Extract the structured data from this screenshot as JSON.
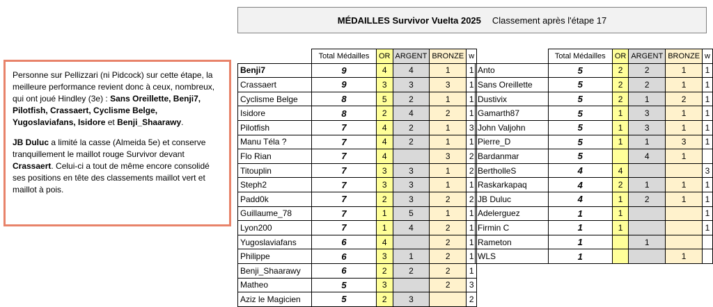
{
  "title": {
    "main": "MÉDAILLES Survivor Vuelta 2025",
    "sub": "Classement après l'étape 17"
  },
  "comment": {
    "p1_a": "Personne sur Pellizzari (ni Pidcock) sur cette étape, la meilleure performance revient donc à ceux, nombreux, qui ont joué Hindley (3e) : ",
    "p1_bold": "Sans Oreillette, Benji7, Pilotfish, Crassaert, Cyclisme Belge, Yugoslaviafans, Isidore",
    "p1_and": " et ",
    "p1_bold2": "Benji_Shaarawy",
    "p1_end": ".",
    "p2_bold": "JB Duluc",
    "p2_a": " a limité la casse (Almeida 5e) et conserve tranquillement le maillot rouge Survivor devant ",
    "p2_bold2": "Crassaert",
    "p2_b": ". Celui-ci a tout de même encore consolidé ses positions en tête des classements maillot vert et maillot à pois."
  },
  "headers": {
    "total": "Total Médailles",
    "or": "OR",
    "argent": "ARGENT",
    "bronze": "BRONZE",
    "w": "w"
  },
  "left_rows": [
    {
      "name": "Benji7",
      "total": "9",
      "or": "4",
      "argent": "4",
      "bronze": "1",
      "w": "1",
      "bold": true
    },
    {
      "name": "Crassaert",
      "total": "9",
      "or": "3",
      "argent": "3",
      "bronze": "3",
      "w": "1"
    },
    {
      "name": "Cyclisme Belge",
      "total": "8",
      "or": "5",
      "argent": "2",
      "bronze": "1",
      "w": "1"
    },
    {
      "name": "Isidore",
      "total": "8",
      "or": "2",
      "argent": "4",
      "bronze": "2",
      "w": "1"
    },
    {
      "name": "Pilotfish",
      "total": "7",
      "or": "4",
      "argent": "2",
      "bronze": "1",
      "w": "3"
    },
    {
      "name": "Manu Téla ?",
      "total": "7",
      "or": "4",
      "argent": "2",
      "bronze": "1",
      "w": "1"
    },
    {
      "name": "Flo Rian",
      "total": "7",
      "or": "4",
      "argent": "",
      "bronze": "3",
      "w": "2"
    },
    {
      "name": "Titouplin",
      "total": "7",
      "or": "3",
      "argent": "3",
      "bronze": "1",
      "w": "2"
    },
    {
      "name": "Steph2",
      "total": "7",
      "or": "3",
      "argent": "3",
      "bronze": "1",
      "w": "1"
    },
    {
      "name": "Padd0k",
      "total": "7",
      "or": "2",
      "argent": "3",
      "bronze": "2",
      "w": "2"
    },
    {
      "name": "Guillaume_78",
      "total": "7",
      "or": "1",
      "argent": "5",
      "bronze": "1",
      "w": "1"
    },
    {
      "name": "Lyon200",
      "total": "7",
      "or": "1",
      "argent": "4",
      "bronze": "2",
      "w": "1"
    },
    {
      "name": "Yugoslaviafans",
      "total": "6",
      "or": "4",
      "argent": "",
      "bronze": "2",
      "w": "1"
    },
    {
      "name": "Philippe",
      "total": "6",
      "or": "3",
      "argent": "1",
      "bronze": "2",
      "w": "1"
    },
    {
      "name": "Benji_Shaarawy",
      "total": "6",
      "or": "2",
      "argent": "2",
      "bronze": "2",
      "w": "1"
    },
    {
      "name": "Matheo",
      "total": "5",
      "or": "3",
      "argent": "",
      "bronze": "2",
      "w": "3"
    },
    {
      "name": "Aziz le Magicien",
      "total": "5",
      "or": "2",
      "argent": "3",
      "bronze": "",
      "w": "2"
    }
  ],
  "right_rows": [
    {
      "name": "Anto",
      "total": "5",
      "or": "2",
      "argent": "2",
      "bronze": "1",
      "w": "1"
    },
    {
      "name": "Sans Oreillette",
      "total": "5",
      "or": "2",
      "argent": "2",
      "bronze": "1",
      "w": "1"
    },
    {
      "name": "Dustivix",
      "total": "5",
      "or": "2",
      "argent": "1",
      "bronze": "2",
      "w": "1"
    },
    {
      "name": "Gamarth87",
      "total": "5",
      "or": "1",
      "argent": "3",
      "bronze": "1",
      "w": "1"
    },
    {
      "name": "John Valjohn",
      "total": "5",
      "or": "1",
      "argent": "3",
      "bronze": "1",
      "w": "1"
    },
    {
      "name": "Pierre_D",
      "total": "5",
      "or": "1",
      "argent": "1",
      "bronze": "3",
      "w": "1"
    },
    {
      "name": "Bardanmar",
      "total": "5",
      "or": "",
      "argent": "4",
      "bronze": "1",
      "w": ""
    },
    {
      "name": "BertholleS",
      "total": "4",
      "or": "4",
      "argent": "",
      "bronze": "",
      "w": "3"
    },
    {
      "name": "Raskarkapaq",
      "total": "4",
      "or": "2",
      "argent": "1",
      "bronze": "1",
      "w": "1"
    },
    {
      "name": "JB Duluc",
      "total": "4",
      "or": "1",
      "argent": "2",
      "bronze": "1",
      "w": "1"
    },
    {
      "name": "Adelerguez",
      "total": "1",
      "or": "1",
      "argent": "",
      "bronze": "",
      "w": "1"
    },
    {
      "name": "Firmin C",
      "total": "1",
      "or": "1",
      "argent": "",
      "bronze": "",
      "w": "1"
    },
    {
      "name": "Rameton",
      "total": "1",
      "or": "",
      "argent": "1",
      "bronze": "",
      "w": ""
    },
    {
      "name": "WLS",
      "total": "1",
      "or": "",
      "argent": "",
      "bronze": "1",
      "w": ""
    }
  ],
  "colors": {
    "or": "#ffff99",
    "argent": "#d9d9d9",
    "bronze": "#fff2cc",
    "comment_border": "#e8836a"
  }
}
